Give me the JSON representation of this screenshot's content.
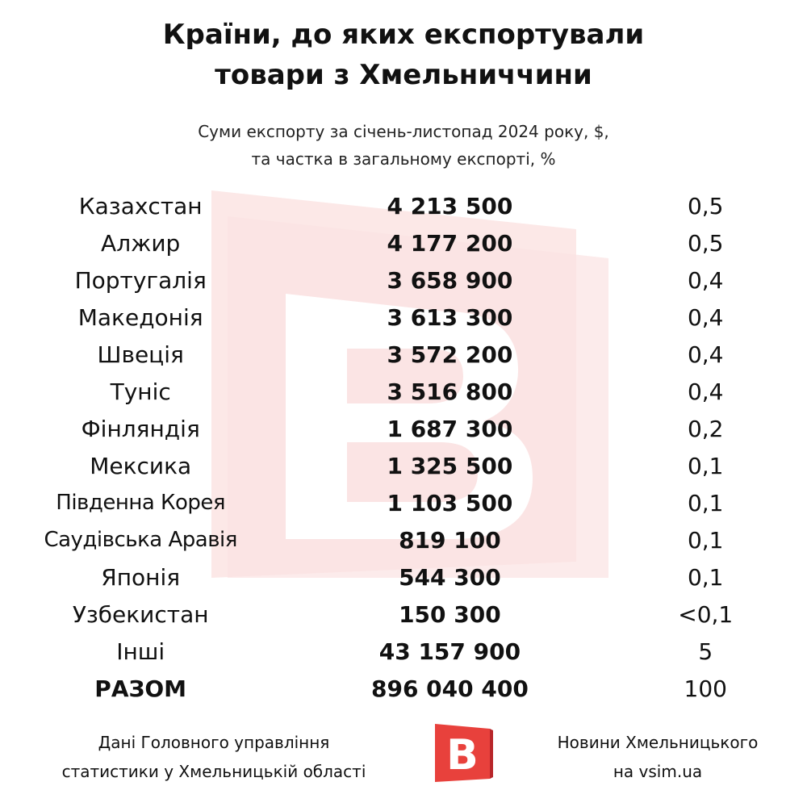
{
  "title_line1": "Країни, до яких експортували",
  "title_line2": "товари з Хмельниччини",
  "subtitle_line1": "Суми експорту за січень-листопад 2024 року, $,",
  "subtitle_line2": "та частка в загальному експорті, %",
  "chart_data": {
    "type": "table",
    "title": "Країни, до яких експортували товари з Хмельниччини",
    "subtitle": "Суми експорту за січень-листопад 2024 року, $, та частка в загальному експорті, %",
    "rows": [
      {
        "country": "Казахстан",
        "value": "4 213 500",
        "share": "0,5"
      },
      {
        "country": "Алжир",
        "value": "4 177 200",
        "share": "0,5"
      },
      {
        "country": "Португалія",
        "value": "3 658 900",
        "share": "0,4"
      },
      {
        "country": "Македонія",
        "value": "3 613 300",
        "share": "0,4"
      },
      {
        "country": "Швеція",
        "value": "3 572 200",
        "share": "0,4"
      },
      {
        "country": "Туніс",
        "value": "3 516 800",
        "share": "0,4"
      },
      {
        "country": "Фінляндія",
        "value": "1 687 300",
        "share": "0,2"
      },
      {
        "country": "Мексика",
        "value": "1 325 500",
        "share": "0,1"
      },
      {
        "country": "Південна Корея",
        "value": "1 103 500",
        "share": "0,1"
      },
      {
        "country": "Саудівська Аравія",
        "value": "819 100",
        "share": "0,1"
      },
      {
        "country": "Японія",
        "value": "544 300",
        "share": "0,1"
      },
      {
        "country": "Узбекистан",
        "value": "150 300",
        "share": "<0,1"
      },
      {
        "country": "Інші",
        "value": "43 157 900",
        "share": "5"
      }
    ],
    "total": {
      "label": "РАЗОМ",
      "value": "896 040 400",
      "share": "100"
    }
  },
  "footer": {
    "source_line1": "Дані Головного управління",
    "source_line2": "статистики у Хмельницькій області",
    "brand_line1": "Новини Хмельницького",
    "brand_line2": "на vsim.ua",
    "logo_letter": "В"
  },
  "colors": {
    "brand": "#e8413c",
    "brand_dark": "#b8262a",
    "watermark": "#fbe3e2",
    "text": "#111111"
  }
}
